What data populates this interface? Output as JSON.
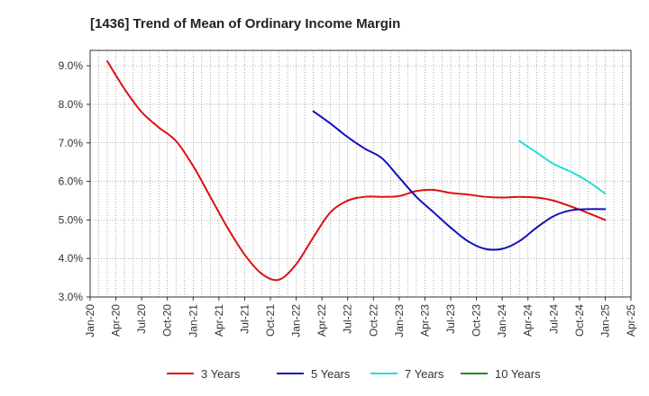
{
  "chart_data": {
    "type": "line",
    "title": "[1436]  Trend of Mean of Ordinary Income Margin",
    "xlabel": "",
    "ylabel": "",
    "x_ticks": [
      "Jan-20",
      "Apr-20",
      "Jul-20",
      "Oct-20",
      "Jan-21",
      "Apr-21",
      "Jul-21",
      "Oct-21",
      "Jan-22",
      "Apr-22",
      "Jul-22",
      "Oct-22",
      "Jan-23",
      "Apr-23",
      "Jul-23",
      "Oct-23",
      "Jan-24",
      "Apr-24",
      "Jul-24",
      "Oct-24",
      "Jan-25",
      "Apr-25"
    ],
    "y_ticks": [
      "3.0%",
      "4.0%",
      "5.0%",
      "6.0%",
      "7.0%",
      "8.0%",
      "9.0%"
    ],
    "ylim": [
      3.0,
      9.4
    ],
    "y_tick_values": [
      3,
      4,
      5,
      6,
      7,
      8,
      9
    ],
    "grid": true,
    "legend_position": "bottom",
    "series": [
      {
        "name": "3 Years",
        "color": "#dd1111",
        "points": [
          [
            "2020-03",
            9.12
          ],
          [
            "2020-05",
            8.4
          ],
          [
            "2020-07",
            7.8
          ],
          [
            "2020-09",
            7.4
          ],
          [
            "2020-11",
            7.05
          ],
          [
            "2021-01",
            6.4
          ],
          [
            "2021-03",
            5.6
          ],
          [
            "2021-05",
            4.8
          ],
          [
            "2021-07",
            4.1
          ],
          [
            "2021-09",
            3.6
          ],
          [
            "2021-11",
            3.45
          ],
          [
            "2022-01",
            3.85
          ],
          [
            "2022-03",
            4.55
          ],
          [
            "2022-05",
            5.2
          ],
          [
            "2022-07",
            5.5
          ],
          [
            "2022-09",
            5.6
          ],
          [
            "2022-11",
            5.6
          ],
          [
            "2023-01",
            5.62
          ],
          [
            "2023-03",
            5.75
          ],
          [
            "2023-05",
            5.78
          ],
          [
            "2023-07",
            5.7
          ],
          [
            "2023-09",
            5.66
          ],
          [
            "2023-11",
            5.6
          ],
          [
            "2024-01",
            5.58
          ],
          [
            "2024-03",
            5.6
          ],
          [
            "2024-05",
            5.58
          ],
          [
            "2024-07",
            5.5
          ],
          [
            "2024-09",
            5.35
          ],
          [
            "2024-11",
            5.18
          ],
          [
            "2025-01",
            5.0
          ]
        ]
      },
      {
        "name": "5 Years",
        "color": "#1111bb",
        "points": [
          [
            "2022-03",
            7.82
          ],
          [
            "2022-05",
            7.5
          ],
          [
            "2022-07",
            7.15
          ],
          [
            "2022-09",
            6.85
          ],
          [
            "2022-11",
            6.6
          ],
          [
            "2023-01",
            6.1
          ],
          [
            "2023-03",
            5.6
          ],
          [
            "2023-05",
            5.2
          ],
          [
            "2023-07",
            4.8
          ],
          [
            "2023-09",
            4.45
          ],
          [
            "2023-11",
            4.25
          ],
          [
            "2024-01",
            4.25
          ],
          [
            "2024-03",
            4.45
          ],
          [
            "2024-05",
            4.8
          ],
          [
            "2024-07",
            5.1
          ],
          [
            "2024-09",
            5.25
          ],
          [
            "2024-11",
            5.28
          ],
          [
            "2025-01",
            5.28
          ]
        ]
      },
      {
        "name": "7 Years",
        "color": "#22dddd",
        "points": [
          [
            "2024-03",
            7.05
          ],
          [
            "2024-05",
            6.75
          ],
          [
            "2024-07",
            6.45
          ],
          [
            "2024-09",
            6.25
          ],
          [
            "2024-11",
            6.0
          ],
          [
            "2025-01",
            5.68
          ]
        ]
      },
      {
        "name": "10 Years",
        "color": "#228822",
        "points": []
      }
    ]
  }
}
